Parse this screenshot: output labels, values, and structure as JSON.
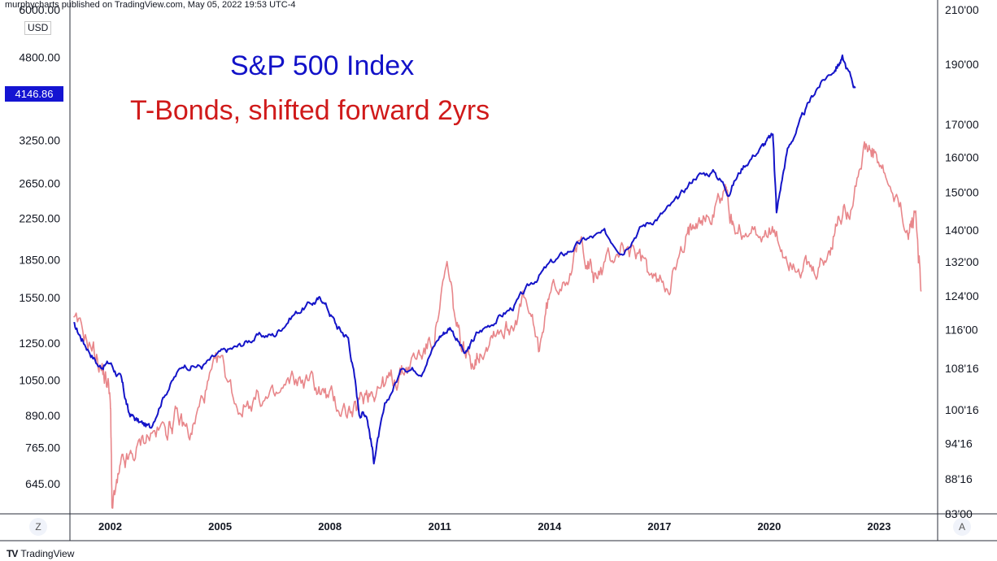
{
  "header": {
    "publisher_line": "murphycharts published on TradingView.com, May 05, 2022 19:53 UTC-4"
  },
  "footer": {
    "brand": "TradingView",
    "brand_logo": "TV"
  },
  "controls": {
    "left_button": "Z",
    "right_button": "A"
  },
  "currency_label": "USD",
  "last_price_label": "4146.86",
  "colors": {
    "sp500": "#1414c8",
    "tbond": "#e8868a",
    "title_blue": "#1212c8",
    "title_red": "#d01a1a"
  },
  "chart_data": {
    "type": "line",
    "titles": [
      "S&P 500 Index",
      "T-Bonds, shifted forward 2yrs"
    ],
    "x_ticks": [
      "2002",
      "2005",
      "2008",
      "2011",
      "2014",
      "2017",
      "2020",
      "2023"
    ],
    "x_tick_years": [
      2002,
      2005,
      2008,
      2011,
      2014,
      2017,
      2020,
      2023
    ],
    "xlim": [
      2000.9,
      2024.6
    ],
    "left_axis": {
      "scale": "log",
      "ylim": [
        560,
        6000
      ],
      "ticks": [
        645,
        765,
        890,
        1050,
        1250,
        1550,
        1850,
        2250,
        2650,
        3250,
        4800,
        6000
      ],
      "tick_labels": [
        "645.00",
        "765.00",
        "890.00",
        "1050.00",
        "1250.00",
        "1550.00",
        "1850.00",
        "2250.00",
        "2650.00",
        "3250.00",
        "4800.00",
        "6000.00"
      ]
    },
    "right_axis": {
      "scale": "log",
      "ylim": [
        83,
        210
      ],
      "ticks": [
        83,
        88.5,
        94.5,
        100.5,
        108.5,
        116.5,
        124,
        132,
        140,
        150,
        160,
        170,
        190,
        210
      ],
      "tick_labels": [
        "83'00",
        "88'16",
        "94'16",
        "100'16",
        "108'16",
        "116'00",
        "124'00",
        "132'00",
        "140'00",
        "150'00",
        "160'00",
        "170'00",
        "190'00",
        "210'00"
      ]
    },
    "series": [
      {
        "name": "S&P 500 Index",
        "axis": "left",
        "x": [
          2001.0,
          2001.3,
          2001.7,
          2002.0,
          2002.3,
          2002.5,
          2002.8,
          2003.1,
          2003.5,
          2004.0,
          2004.5,
          2005.0,
          2005.5,
          2006.0,
          2006.5,
          2007.0,
          2007.5,
          2007.8,
          2008.2,
          2008.5,
          2008.8,
          2009.0,
          2009.2,
          2009.5,
          2010.0,
          2010.5,
          2011.0,
          2011.3,
          2011.7,
          2012.0,
          2012.5,
          2013.0,
          2013.5,
          2014.0,
          2014.5,
          2015.0,
          2015.5,
          2016.0,
          2016.5,
          2017.0,
          2017.5,
          2018.0,
          2018.5,
          2018.9,
          2019.3,
          2019.8,
          2020.1,
          2020.2,
          2020.5,
          2020.9,
          2021.3,
          2021.8,
          2022.0,
          2022.35
        ],
        "y": [
          1360,
          1250,
          1120,
          1140,
          1050,
          900,
          860,
          840,
          990,
          1130,
          1120,
          1190,
          1230,
          1290,
          1300,
          1430,
          1510,
          1540,
          1350,
          1280,
          900,
          900,
          720,
          920,
          1120,
          1100,
          1290,
          1350,
          1180,
          1300,
          1390,
          1480,
          1650,
          1810,
          1920,
          2040,
          2090,
          1930,
          2160,
          2270,
          2450,
          2750,
          2800,
          2550,
          2880,
          3150,
          3320,
          2300,
          3100,
          3600,
          4150,
          4560,
          4760,
          4150
        ]
      },
      {
        "name": "T-Bonds, shifted forward 2yrs",
        "axis": "right",
        "x": [
          2001.0,
          2001.5,
          2001.8,
          2002.0,
          2002.05,
          2002.3,
          2002.6,
          2003.0,
          2003.5,
          2003.8,
          2004.2,
          2004.6,
          2005.0,
          2005.5,
          2006.0,
          2006.5,
          2007.0,
          2007.5,
          2007.9,
          2008.3,
          2008.7,
          2009.0,
          2009.3,
          2009.7,
          2010.0,
          2010.4,
          2010.8,
          2011.2,
          2011.5,
          2011.8,
          2012.1,
          2012.5,
          2012.9,
          2013.3,
          2013.7,
          2014.0,
          2014.5,
          2014.9,
          2015.2,
          2015.6,
          2016.0,
          2016.5,
          2016.9,
          2017.3,
          2017.7,
          2018.0,
          2018.4,
          2018.8,
          2019.0,
          2019.5,
          2020.0,
          2020.4,
          2020.8,
          2021.2,
          2021.6,
          2021.9,
          2022.2,
          2022.6,
          2022.9,
          2023.3,
          2023.8,
          2024.0,
          2024.15
        ],
        "y": [
          118,
          113,
          108,
          104,
          84,
          90,
          92,
          96,
          97,
          99,
          96,
          104,
          110,
          101,
          103,
          102,
          106,
          106,
          103,
          101,
          100,
          104,
          105,
          106,
          108,
          111,
          114,
          130,
          115,
          110,
          112,
          117,
          117,
          123,
          112,
          124,
          130,
          137,
          128,
          132,
          136,
          132,
          127,
          128,
          135,
          145,
          143,
          152,
          141,
          139,
          140,
          134,
          132,
          128,
          133,
          143,
          147,
          162,
          160,
          150,
          140,
          144,
          125
        ]
      }
    ]
  }
}
